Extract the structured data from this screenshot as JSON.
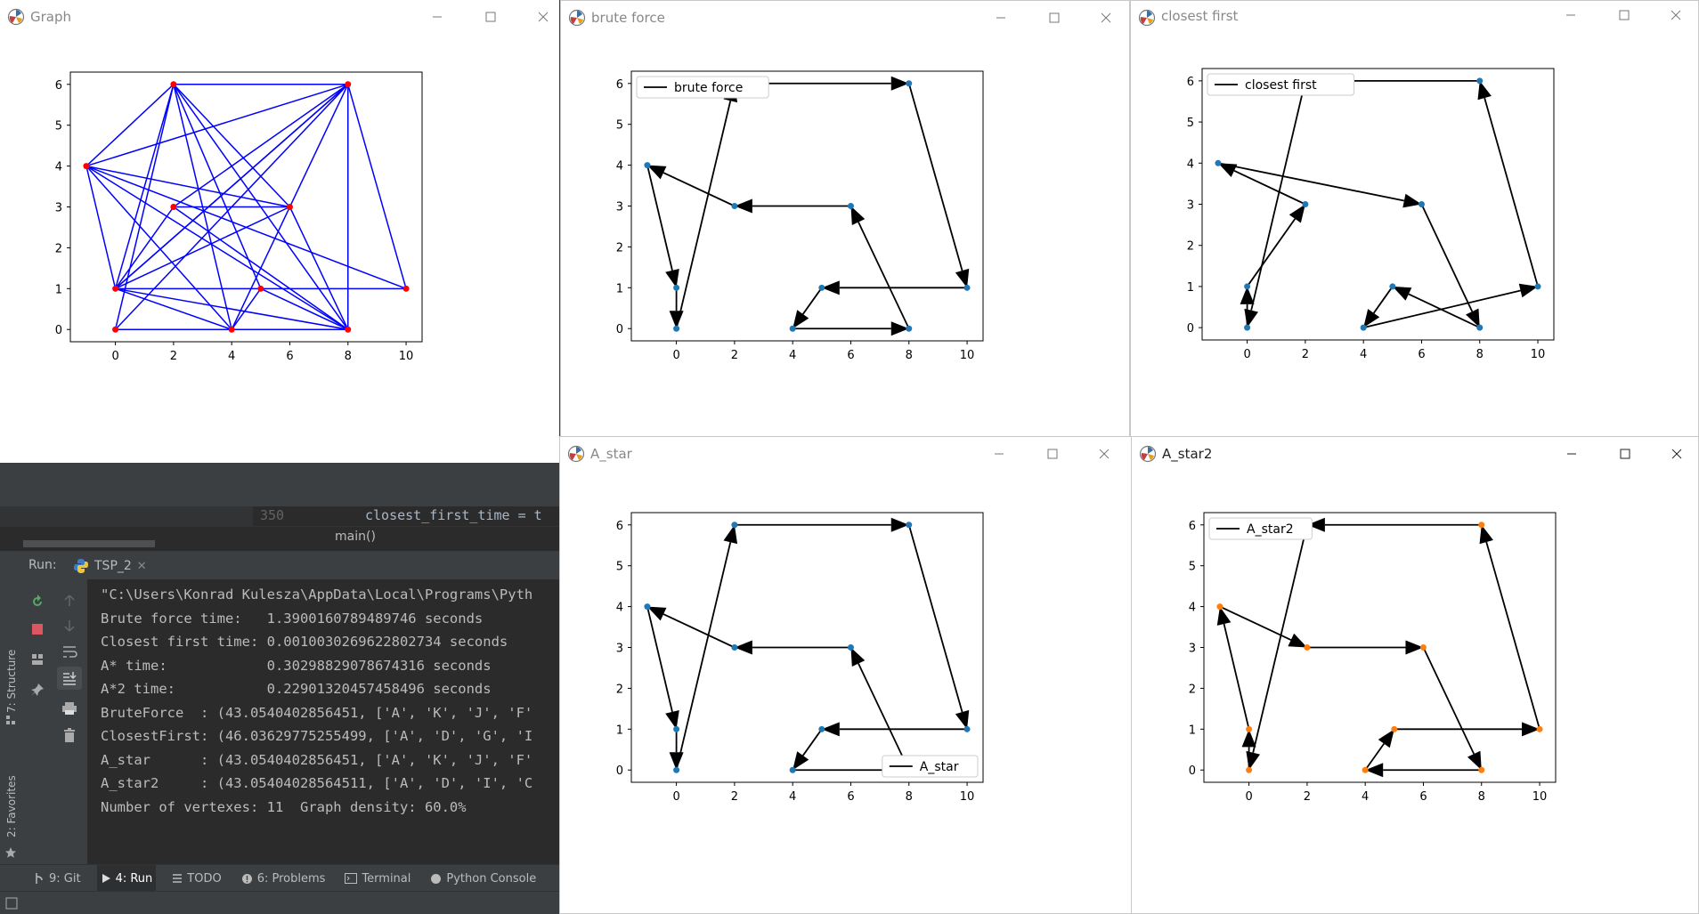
{
  "windows": {
    "graph": {
      "title": "Graph"
    },
    "brute": {
      "title": "brute force"
    },
    "closest": {
      "title": "closest first"
    },
    "astar": {
      "title": "A_star"
    },
    "astar2": {
      "title": "A_star2"
    }
  },
  "colors": {
    "edge": "#0000ff",
    "node_graph": "#ff0000",
    "node_plot": "#1f77b4",
    "node_orange": "#ff7f0e",
    "arrow": "#000000"
  },
  "chart_data": [
    {
      "type": "scatter",
      "name": "graph",
      "title": "",
      "x_ticks": [
        0,
        2,
        4,
        6,
        8,
        10
      ],
      "y_ticks": [
        0,
        1,
        2,
        3,
        4,
        5,
        6
      ],
      "xlim": [
        -1.55,
        10.55
      ],
      "ylim": [
        -0.3,
        6.3
      ],
      "points": [
        [
          0,
          0
        ],
        [
          4,
          0
        ],
        [
          8,
          0
        ],
        [
          0,
          1
        ],
        [
          5,
          1
        ],
        [
          10,
          1
        ],
        [
          2,
          3
        ],
        [
          6,
          3
        ],
        [
          -1,
          4
        ],
        [
          2,
          6
        ],
        [
          8,
          6
        ]
      ],
      "edges": [
        [
          [
            0,
            0
          ],
          [
            8,
            0
          ]
        ],
        [
          [
            0,
            0
          ],
          [
            2,
            6
          ]
        ],
        [
          [
            0,
            0
          ],
          [
            8,
            6
          ]
        ],
        [
          [
            0,
            1
          ],
          [
            10,
            1
          ]
        ],
        [
          [
            0,
            1
          ],
          [
            2,
            6
          ]
        ],
        [
          [
            0,
            1
          ],
          [
            8,
            6
          ]
        ],
        [
          [
            0,
            1
          ],
          [
            6,
            3
          ]
        ],
        [
          [
            0,
            1
          ],
          [
            2,
            3
          ]
        ],
        [
          [
            0,
            1
          ],
          [
            4,
            0
          ]
        ],
        [
          [
            0,
            1
          ],
          [
            8,
            0
          ]
        ],
        [
          [
            -1,
            4
          ],
          [
            0,
            1
          ]
        ],
        [
          [
            -1,
            4
          ],
          [
            2,
            6
          ]
        ],
        [
          [
            -1,
            4
          ],
          [
            8,
            6
          ]
        ],
        [
          [
            -1,
            4
          ],
          [
            6,
            3
          ]
        ],
        [
          [
            -1,
            4
          ],
          [
            10,
            1
          ]
        ],
        [
          [
            -1,
            4
          ],
          [
            4,
            0
          ]
        ],
        [
          [
            -1,
            4
          ],
          [
            8,
            0
          ]
        ],
        [
          [
            2,
            6
          ],
          [
            8,
            6
          ]
        ],
        [
          [
            2,
            6
          ],
          [
            6,
            3
          ]
        ],
        [
          [
            2,
            6
          ],
          [
            4,
            0
          ]
        ],
        [
          [
            2,
            6
          ],
          [
            8,
            0
          ]
        ],
        [
          [
            2,
            6
          ],
          [
            5,
            1
          ]
        ],
        [
          [
            8,
            6
          ],
          [
            10,
            1
          ]
        ],
        [
          [
            8,
            6
          ],
          [
            8,
            0
          ]
        ],
        [
          [
            8,
            6
          ],
          [
            4,
            0
          ]
        ],
        [
          [
            8,
            6
          ],
          [
            0,
            1
          ]
        ],
        [
          [
            2,
            3
          ],
          [
            6,
            3
          ]
        ],
        [
          [
            2,
            3
          ],
          [
            8,
            0
          ]
        ],
        [
          [
            2,
            3
          ],
          [
            8,
            6
          ]
        ],
        [
          [
            6,
            3
          ],
          [
            8,
            0
          ]
        ],
        [
          [
            4,
            0
          ],
          [
            5,
            1
          ]
        ],
        [
          [
            5,
            1
          ],
          [
            8,
            0
          ]
        ]
      ]
    },
    {
      "type": "line",
      "name": "brute",
      "legend": "brute force",
      "legend_loc": "upper-left",
      "x_ticks": [
        0,
        2,
        4,
        6,
        8,
        10
      ],
      "y_ticks": [
        0,
        1,
        2,
        3,
        4,
        5,
        6
      ],
      "xlim": [
        -1.55,
        10.55
      ],
      "ylim": [
        -0.3,
        6.3
      ],
      "path": [
        [
          0,
          0
        ],
        [
          2,
          6
        ],
        [
          8,
          6
        ],
        [
          10,
          1
        ],
        [
          5,
          1
        ],
        [
          4,
          0
        ],
        [
          8,
          0
        ],
        [
          6,
          3
        ],
        [
          2,
          3
        ],
        [
          -1,
          4
        ],
        [
          0,
          1
        ],
        [
          0,
          0
        ]
      ]
    },
    {
      "type": "line",
      "name": "closest",
      "legend": "closest first",
      "legend_loc": "upper-left",
      "x_ticks": [
        0,
        2,
        4,
        6,
        8,
        10
      ],
      "y_ticks": [
        0,
        1,
        2,
        3,
        4,
        5,
        6
      ],
      "xlim": [
        -1.55,
        10.55
      ],
      "ylim": [
        -0.3,
        6.3
      ],
      "path": [
        [
          0,
          0
        ],
        [
          0,
          1
        ],
        [
          2,
          3
        ],
        [
          -1,
          4
        ],
        [
          6,
          3
        ],
        [
          8,
          0
        ],
        [
          5,
          1
        ],
        [
          4,
          0
        ],
        [
          10,
          1
        ],
        [
          8,
          6
        ],
        [
          2,
          6
        ],
        [
          0,
          0
        ]
      ]
    },
    {
      "type": "line",
      "name": "astar",
      "legend": "A_star",
      "legend_loc": "lower-right",
      "x_ticks": [
        0,
        2,
        4,
        6,
        8,
        10
      ],
      "y_ticks": [
        0,
        1,
        2,
        3,
        4,
        5,
        6
      ],
      "xlim": [
        -1.55,
        10.55
      ],
      "ylim": [
        -0.3,
        6.3
      ],
      "path": [
        [
          0,
          0
        ],
        [
          2,
          6
        ],
        [
          8,
          6
        ],
        [
          10,
          1
        ],
        [
          5,
          1
        ],
        [
          4,
          0
        ],
        [
          8,
          0
        ],
        [
          6,
          3
        ],
        [
          2,
          3
        ],
        [
          -1,
          4
        ],
        [
          0,
          1
        ],
        [
          0,
          0
        ]
      ]
    },
    {
      "type": "line",
      "name": "astar2",
      "legend": "A_star2",
      "legend_loc": "upper-left",
      "node_color": "orange",
      "x_ticks": [
        0,
        2,
        4,
        6,
        8,
        10
      ],
      "y_ticks": [
        0,
        1,
        2,
        3,
        4,
        5,
        6
      ],
      "xlim": [
        -1.55,
        10.55
      ],
      "ylim": [
        -0.3,
        6.3
      ],
      "path": [
        [
          0,
          1
        ],
        [
          -1,
          4
        ],
        [
          2,
          3
        ],
        [
          6,
          3
        ],
        [
          8,
          0
        ],
        [
          4,
          0
        ],
        [
          5,
          1
        ],
        [
          10,
          1
        ],
        [
          8,
          6
        ],
        [
          2,
          6
        ],
        [
          0,
          0
        ],
        [
          0,
          1
        ]
      ]
    }
  ],
  "ide": {
    "line_number": "350",
    "code_line": "closest_first_time = t",
    "breadcrumb": "main()",
    "run_label": "Run:",
    "run_tab": "TSP_2",
    "console_lines": [
      "\"C:\\Users\\Konrad Kulesza\\AppData\\Local\\Programs\\Pyth",
      "Brute force time:   1.3900160789489746 seconds",
      "Closest first time: 0.0010030269622802734 seconds",
      "A* time:            0.30298829078674316 seconds",
      "A*2 time:           0.22901320457458496 seconds",
      "BruteForce  : (43.0540402856451, ['A', 'K', 'J', 'F'",
      "ClosestFirst: (46.03629775255499, ['A', 'D', 'G', 'I",
      "A_star      : (43.0540402856451, ['A', 'K', 'J', 'F'",
      "A_star2     : (43.05404028564511, ['A', 'D', 'I', 'C",
      "Number of vertexes: 11  Graph density: 60.0%"
    ],
    "side_labels": {
      "structure": "7: Structure",
      "favorites": "2: Favorites"
    },
    "bottom_tabs": [
      {
        "label": "9: Git",
        "icon": "git-icon"
      },
      {
        "label": "4: Run",
        "icon": "run-icon"
      },
      {
        "label": "TODO",
        "icon": "todo-icon"
      },
      {
        "label": "6: Problems",
        "icon": "problems-icon"
      },
      {
        "label": "Terminal",
        "icon": "terminal-icon"
      },
      {
        "label": "Python Console",
        "icon": "python-console-icon"
      }
    ]
  }
}
